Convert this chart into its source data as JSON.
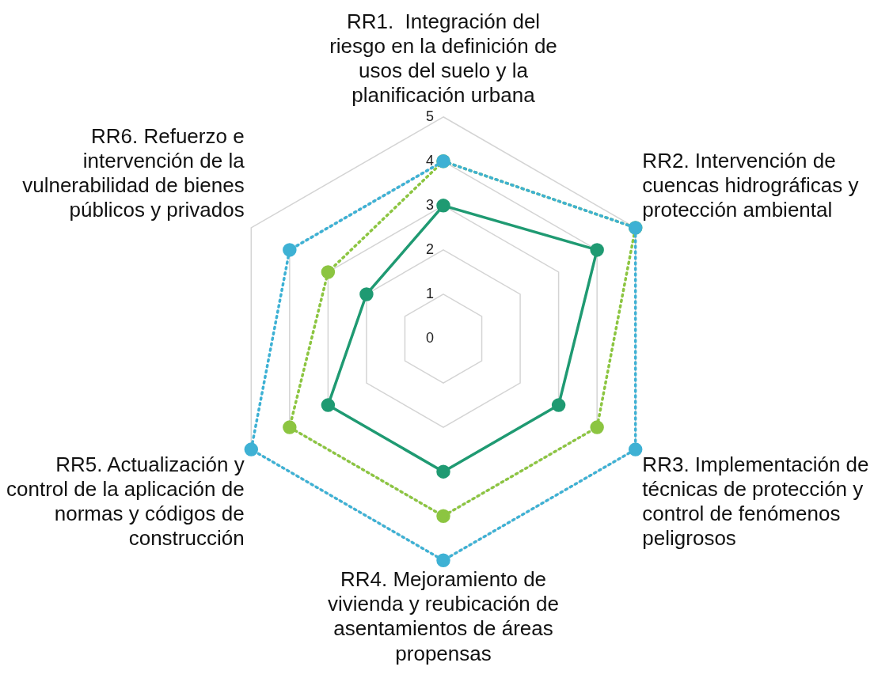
{
  "chart_data": {
    "type": "radar",
    "categories": [
      "RR1.  Integración del riesgo en la definición de usos del suelo y la planificación urbana",
      "RR2. Intervención de cuencas hidrográficas y protección ambiental",
      "RR3. Implementación de técnicas de protección y control de fenómenos peligrosos",
      "RR4. Mejoramiento de vivienda y reubicación de asentamientos de áreas propensas",
      "RR5. Actualización y control de la aplicación de normas y códigos de construcción",
      "RR6. Refuerzo e intervención de la vulnerabilidad de bienes públicos y privados"
    ],
    "series": [
      {
        "color": "#3eb1d4",
        "line_style": "dotted",
        "values": [
          4,
          5,
          5,
          5,
          5,
          4
        ]
      },
      {
        "color": "#8cc541",
        "line_style": "dotted",
        "values": [
          4,
          5,
          4,
          4,
          4,
          3
        ]
      },
      {
        "color": "#1f9a72",
        "line_style": "solid",
        "values": [
          3,
          4,
          3,
          3,
          3,
          2
        ]
      }
    ],
    "ylim": [
      0,
      5
    ],
    "yticks": [
      0,
      1,
      2,
      3,
      4,
      5
    ],
    "grid": true,
    "legend": false,
    "marker": "circle"
  }
}
